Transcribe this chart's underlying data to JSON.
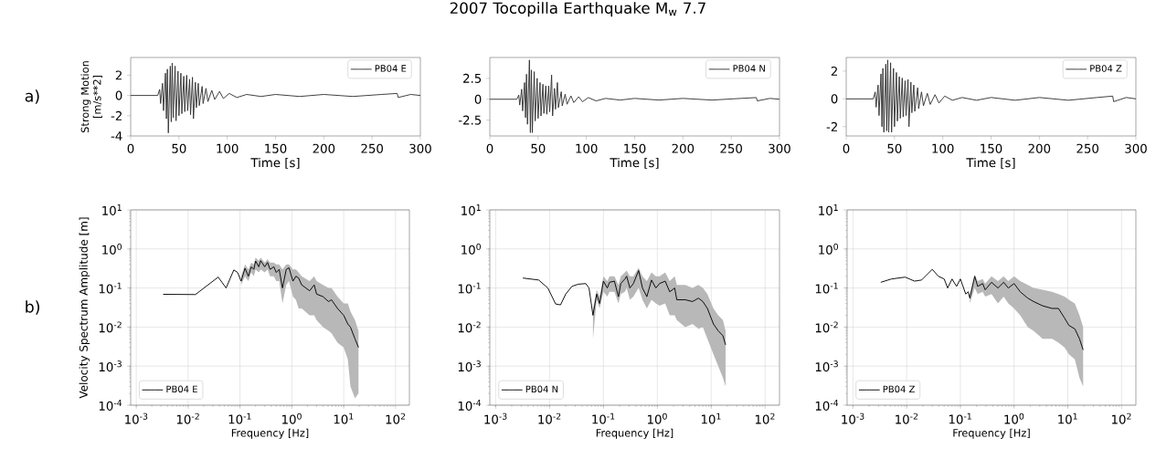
{
  "chart_data": [
    {
      "type": "line",
      "ylabel": "Strong Motion [m/s**2]",
      "xlabel": "Time [s]",
      "annotations": [
        "a)"
      ],
      "legend": "top right",
      "x": [
        0,
        28,
        30,
        31,
        33,
        34,
        36,
        37,
        38,
        39,
        41,
        42,
        43,
        44,
        46,
        47,
        49,
        50,
        52,
        53,
        55,
        56,
        58,
        59,
        61,
        62,
        64,
        65,
        67,
        68,
        70,
        71,
        74,
        75,
        78,
        80,
        84,
        87,
        92,
        96,
        102,
        110,
        120,
        135,
        150,
        175,
        200,
        230,
        260,
        276,
        277,
        290,
        300
      ],
      "series": [
        {
          "name": "PB04  E",
          "color": "#333333",
          "values": [
            0,
            0,
            0.6,
            -0.8,
            1.2,
            -1.5,
            2.2,
            -2.3,
            2.6,
            -3.7,
            2.9,
            -2.6,
            3.2,
            -2.2,
            2.9,
            -2.5,
            2.4,
            -2.0,
            2.2,
            -1.8,
            1.9,
            -1.6,
            2.0,
            -1.5,
            1.6,
            -1.9,
            1.8,
            -2.3,
            1.3,
            -1.2,
            1.2,
            -1.0,
            0.9,
            -0.8,
            0.7,
            -0.6,
            0.5,
            -0.4,
            0.4,
            -0.3,
            0.2,
            -0.2,
            0.1,
            -0.1,
            0.1,
            -0.1,
            0.1,
            -0.1,
            0.1,
            0.2,
            -0.2,
            0.1,
            0
          ]
        }
      ],
      "xlim": [
        0,
        300
      ],
      "ylim": [
        -4,
        3.75
      ],
      "xticks": [
        0,
        50,
        100,
        150,
        200,
        250,
        300
      ],
      "yticks": [
        -4,
        -2,
        0,
        2
      ]
    },
    {
      "type": "line",
      "title": "2007 Tocopilla Earthquake M$_{w}$ 7.7",
      "xlabel": "Time [s]",
      "legend": "top right",
      "x": [
        0,
        28,
        30,
        31,
        33,
        34,
        36,
        37,
        38,
        39,
        41,
        42,
        43,
        44,
        46,
        47,
        49,
        50,
        52,
        53,
        55,
        56,
        58,
        59,
        61,
        62,
        64,
        65,
        67,
        68,
        70,
        71,
        74,
        75,
        78,
        80,
        84,
        87,
        92,
        96,
        102,
        110,
        120,
        135,
        150,
        175,
        200,
        230,
        260,
        276,
        277,
        290,
        300
      ],
      "series": [
        {
          "name": "PB04  N",
          "color": "#333333",
          "values": [
            0,
            0,
            0.5,
            -0.7,
            1.2,
            -1.4,
            2.0,
            -2.2,
            3.0,
            -3.0,
            4.7,
            -4.0,
            3.5,
            -4.0,
            3.3,
            -2.6,
            2.5,
            -2.3,
            2.0,
            -2.0,
            1.8,
            -1.7,
            1.6,
            -1.8,
            1.6,
            -1.5,
            2.9,
            -2.0,
            1.3,
            -1.2,
            2.0,
            -1.0,
            0.9,
            -0.8,
            0.6,
            -0.6,
            0.4,
            -0.4,
            0.3,
            -0.3,
            0.2,
            -0.2,
            0.1,
            -0.1,
            0.1,
            -0.1,
            0.1,
            -0.1,
            0.1,
            0.2,
            -0.2,
            0.1,
            0
          ]
        }
      ],
      "xlim": [
        0,
        300
      ],
      "ylim": [
        -4.4,
        5.0
      ],
      "xticks": [
        0,
        50,
        100,
        150,
        200,
        250,
        300
      ],
      "yticks": [
        -2.5,
        0,
        2.5
      ]
    },
    {
      "type": "line",
      "xlabel": "Time [s]",
      "legend": "top right",
      "x": [
        0,
        28,
        30,
        31,
        33,
        34,
        36,
        37,
        38,
        39,
        41,
        42,
        43,
        44,
        46,
        47,
        49,
        50,
        52,
        53,
        55,
        56,
        58,
        59,
        61,
        62,
        64,
        65,
        67,
        68,
        70,
        71,
        74,
        75,
        78,
        80,
        84,
        87,
        92,
        96,
        102,
        110,
        120,
        135,
        150,
        175,
        200,
        230,
        260,
        276,
        277,
        290,
        300
      ],
      "series": [
        {
          "name": "PB04  Z",
          "color": "#333333",
          "values": [
            0,
            0,
            0.5,
            -0.6,
            1.0,
            -1.2,
            1.8,
            -2.0,
            2.2,
            -2.4,
            2.5,
            -2.3,
            2.8,
            -2.4,
            2.6,
            -2.4,
            2.2,
            -2.0,
            1.9,
            -1.6,
            1.6,
            -1.4,
            1.5,
            -1.3,
            1.3,
            -1.2,
            1.4,
            -2.0,
            1.2,
            -1.0,
            1.0,
            -0.9,
            0.8,
            -0.7,
            0.5,
            -0.5,
            0.4,
            -0.4,
            0.3,
            -0.3,
            0.2,
            -0.1,
            0.1,
            -0.1,
            0.1,
            -0.1,
            0.1,
            -0.1,
            0.1,
            0.2,
            -0.2,
            0.1,
            0
          ]
        }
      ],
      "xlim": [
        0,
        300
      ],
      "ylim": [
        -2.67,
        2.98
      ],
      "xticks": [
        0,
        50,
        100,
        150,
        200,
        250,
        300
      ],
      "yticks": [
        -2,
        0,
        2
      ]
    },
    {
      "type": "line",
      "ylabel": "Velocity Spectrum Amplitude [m]",
      "xlabel": "Frequency [Hz]",
      "annotations": [
        "b)"
      ],
      "legend": "bottom left",
      "log": "xy",
      "grid": true,
      "x": [
        0.0033,
        0.0138,
        0.038,
        0.054,
        0.076,
        0.09,
        0.105,
        0.125,
        0.145,
        0.165,
        0.185,
        0.2,
        0.23,
        0.25,
        0.3,
        0.34,
        0.38,
        0.45,
        0.5,
        0.57,
        0.66,
        0.78,
        0.88,
        1.05,
        1.2,
        1.35,
        1.55,
        2.2,
        2.7,
        3.0,
        4.0,
        5.1,
        5.8,
        7.6,
        10,
        12,
        13.5,
        16.5,
        19.3
      ],
      "series": [
        {
          "name": "PB04  E",
          "color": "#000000",
          "values": [
            0.069,
            0.068,
            0.19,
            0.1,
            0.29,
            0.25,
            0.15,
            0.32,
            0.2,
            0.35,
            0.3,
            0.49,
            0.35,
            0.5,
            0.35,
            0.45,
            0.3,
            0.35,
            0.25,
            0.3,
            0.1,
            0.3,
            0.33,
            0.15,
            0.2,
            0.18,
            0.12,
            0.085,
            0.12,
            0.07,
            0.06,
            0.045,
            0.05,
            0.03,
            0.02,
            0.012,
            0.01,
            0.005,
            0.003
          ],
          "lower": [
            null,
            null,
            null,
            null,
            null,
            null,
            0.12,
            0.2,
            0.15,
            0.25,
            0.2,
            0.3,
            0.25,
            0.3,
            0.25,
            0.3,
            0.2,
            0.2,
            0.15,
            0.15,
            0.04,
            0.12,
            0.15,
            0.06,
            0.05,
            0.03,
            0.03,
            0.02,
            0.02,
            0.015,
            0.01,
            0.008,
            0.007,
            0.004,
            0.003,
            0.0015,
            0.0003,
            0.00015,
            0.0002
          ],
          "upper": [
            null,
            null,
            null,
            null,
            null,
            null,
            0.2,
            0.4,
            0.3,
            0.45,
            0.4,
            0.6,
            0.5,
            0.6,
            0.45,
            0.55,
            0.45,
            0.45,
            0.4,
            0.4,
            0.3,
            0.4,
            0.4,
            0.3,
            0.3,
            0.25,
            0.2,
            0.15,
            0.2,
            0.15,
            0.12,
            0.1,
            0.1,
            0.06,
            0.04,
            0.04,
            0.025,
            0.015,
            0.008
          ]
        }
      ],
      "xlim": [
        0.00078,
        185
      ],
      "ylim": [
        0.0001,
        10
      ],
      "xticks": [
        {
          "value": 0.001,
          "label": "10$^{-3}$"
        },
        {
          "value": 0.01,
          "label": "10$^{-2}$"
        },
        {
          "value": 0.1,
          "label": "10$^{-1}$"
        },
        {
          "value": 1,
          "label": "10$^{0}$"
        },
        {
          "value": 10,
          "label": "10$^{1}$"
        },
        {
          "value": 100,
          "label": "10$^{2}$"
        }
      ],
      "yticks": [
        {
          "value": 0.0001,
          "label": "10$^{-4}$"
        },
        {
          "value": 0.001,
          "label": "10$^{-3}$"
        },
        {
          "value": 0.01,
          "label": "10$^{-2}$"
        },
        {
          "value": 0.1,
          "label": "10$^{-1}$"
        },
        {
          "value": 1,
          "label": "10$^{0}$"
        },
        {
          "value": 10,
          "label": "10$^{1}$"
        }
      ]
    },
    {
      "type": "line",
      "xlabel": "Frequency [Hz]",
      "legend": "bottom left",
      "log": "xy",
      "grid": true,
      "x": [
        0.0032,
        0.0063,
        0.0093,
        0.013,
        0.016,
        0.02,
        0.026,
        0.034,
        0.047,
        0.054,
        0.064,
        0.075,
        0.085,
        0.1,
        0.118,
        0.13,
        0.16,
        0.19,
        0.21,
        0.25,
        0.27,
        0.31,
        0.36,
        0.45,
        0.53,
        0.64,
        0.78,
        0.94,
        1.1,
        1.4,
        1.7,
        2.1,
        2.3,
        3.3,
        4.5,
        5.8,
        7,
        8.5,
        11,
        13.5,
        16.5,
        18.5
      ],
      "series": [
        {
          "name": "PB04  N",
          "color": "#000000",
          "values": [
            0.18,
            0.16,
            0.1,
            0.039,
            0.037,
            0.07,
            0.11,
            0.125,
            0.13,
            0.1,
            0.02,
            0.07,
            0.04,
            0.15,
            0.1,
            0.14,
            0.15,
            0.06,
            0.13,
            0.17,
            0.2,
            0.1,
            0.13,
            0.28,
            0.1,
            0.06,
            0.16,
            0.1,
            0.13,
            0.15,
            0.08,
            0.1,
            0.05,
            0.05,
            0.045,
            0.055,
            0.045,
            0.03,
            0.012,
            0.008,
            0.006,
            0.0035
          ],
          "lower": [
            null,
            null,
            null,
            null,
            null,
            null,
            null,
            null,
            null,
            null,
            0.005,
            0.05,
            0.03,
            0.08,
            0.06,
            0.08,
            0.08,
            0.04,
            0.07,
            0.08,
            0.1,
            0.05,
            0.06,
            0.1,
            0.05,
            0.03,
            0.05,
            0.04,
            0.035,
            0.04,
            0.02,
            0.02,
            0.015,
            0.01,
            0.012,
            0.009,
            0.01,
            0.005,
            0.002,
            0.001,
            0.0005,
            0.0003
          ],
          "upper": [
            null,
            null,
            null,
            null,
            null,
            null,
            null,
            null,
            null,
            null,
            0.03,
            0.09,
            0.06,
            0.2,
            0.15,
            0.2,
            0.2,
            0.12,
            0.2,
            0.25,
            0.28,
            0.2,
            0.2,
            0.33,
            0.2,
            0.15,
            0.25,
            0.2,
            0.2,
            0.25,
            0.15,
            0.2,
            0.12,
            0.12,
            0.1,
            0.12,
            0.1,
            0.07,
            0.03,
            0.02,
            0.015,
            0.008
          ]
        }
      ],
      "xlim": [
        0.00078,
        185
      ],
      "ylim": [
        0.0001,
        10
      ],
      "xticks": [
        {
          "value": 0.001,
          "label": "10$^{-3}$"
        },
        {
          "value": 0.01,
          "label": "10$^{-2}$"
        },
        {
          "value": 0.1,
          "label": "10$^{-1}$"
        },
        {
          "value": 1,
          "label": "10$^{0}$"
        },
        {
          "value": 10,
          "label": "10$^{1}$"
        },
        {
          "value": 100,
          "label": "10$^{2}$"
        }
      ],
      "yticks": [
        {
          "value": 0.0001,
          "label": "10$^{-4}$"
        },
        {
          "value": 0.001,
          "label": "10$^{-3}$"
        },
        {
          "value": 0.01,
          "label": "10$^{-2}$"
        },
        {
          "value": 0.1,
          "label": "10$^{-1}$"
        },
        {
          "value": 1,
          "label": "10$^{0}$"
        },
        {
          "value": 10,
          "label": "10$^{1}$"
        }
      ]
    },
    {
      "type": "line",
      "xlabel": "Frequency [Hz]",
      "legend": "bottom left",
      "log": "xy",
      "grid": true,
      "x": [
        0.0033,
        0.0052,
        0.0094,
        0.014,
        0.019,
        0.03,
        0.039,
        0.05,
        0.058,
        0.07,
        0.085,
        0.1,
        0.126,
        0.14,
        0.15,
        0.185,
        0.21,
        0.26,
        0.29,
        0.38,
        0.5,
        0.64,
        0.78,
        1.0,
        1.3,
        1.8,
        2.3,
        3.4,
        5.1,
        6.7,
        8.7,
        10.5,
        13.5,
        16.5,
        19.3
      ],
      "series": [
        {
          "name": "PB04  Z",
          "color": "#000000",
          "values": [
            0.14,
            0.17,
            0.19,
            0.15,
            0.16,
            0.3,
            0.2,
            0.17,
            0.1,
            0.17,
            0.11,
            0.17,
            0.07,
            0.08,
            0.055,
            0.2,
            0.11,
            0.13,
            0.09,
            0.14,
            0.1,
            0.14,
            0.1,
            0.13,
            0.08,
            0.055,
            0.045,
            0.035,
            0.03,
            0.03,
            0.017,
            0.011,
            0.009,
            0.005,
            0.0026
          ],
          "lower": [
            null,
            null,
            null,
            null,
            null,
            null,
            null,
            null,
            null,
            null,
            null,
            null,
            null,
            null,
            0.04,
            0.1,
            0.07,
            0.08,
            0.06,
            0.07,
            0.04,
            0.06,
            0.04,
            0.03,
            0.02,
            0.01,
            0.008,
            0.005,
            0.005,
            0.004,
            0.003,
            0.002,
            0.0015,
            0.0005,
            0.0003
          ],
          "upper": [
            null,
            null,
            null,
            null,
            null,
            null,
            null,
            null,
            null,
            null,
            null,
            null,
            null,
            null,
            0.07,
            0.22,
            0.15,
            0.17,
            0.13,
            0.2,
            0.15,
            0.2,
            0.15,
            0.2,
            0.15,
            0.12,
            0.1,
            0.09,
            0.08,
            0.07,
            0.06,
            0.05,
            0.04,
            0.02,
            0.01
          ]
        }
      ],
      "xlim": [
        0.00078,
        185
      ],
      "ylim": [
        0.0001,
        10
      ],
      "xticks": [
        {
          "value": 0.001,
          "label": "10$^{-3}$"
        },
        {
          "value": 0.01,
          "label": "10$^{-2}$"
        },
        {
          "value": 0.1,
          "label": "10$^{-1}$"
        },
        {
          "value": 1,
          "label": "10$^{0}$"
        },
        {
          "value": 10,
          "label": "10$^{1}$"
        },
        {
          "value": 100,
          "label": "10$^{2}$"
        }
      ],
      "yticks": [
        {
          "value": 0.0001,
          "label": "10$^{-4}$"
        },
        {
          "value": 0.001,
          "label": "10$^{-3}$"
        },
        {
          "value": 0.01,
          "label": "10$^{-2}$"
        },
        {
          "value": 0.1,
          "label": "10$^{-1}$"
        },
        {
          "value": 1,
          "label": "10$^{0}$"
        },
        {
          "value": 10,
          "label": "10$^{1}$"
        }
      ]
    }
  ]
}
